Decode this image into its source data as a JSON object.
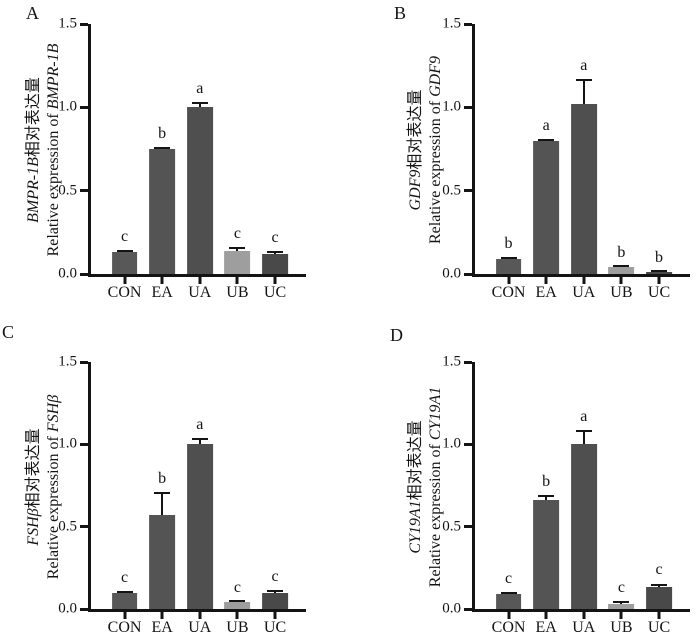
{
  "figure": {
    "background": "#ffffff",
    "axis_color": "#141414",
    "text_color": "#141414",
    "bar_color_dark": "#545454",
    "bar_color_light": "#9e9e9e"
  },
  "chart_data": [
    {
      "type": "bar",
      "panel_label": "A",
      "ylabel_cn_gene": "BMPR-1B",
      "ylabel_cn_suffix": "相对表达量",
      "ylabel_en_prefix": "Relative expression of ",
      "ylabel_en_gene": "BMPR-1B",
      "categories": [
        "CON",
        "EA",
        "UA",
        "UB",
        "UC"
      ],
      "values": [
        0.13,
        0.75,
        1.0,
        0.14,
        0.12
      ],
      "errors": [
        0.012,
        0.01,
        0.03,
        0.025,
        0.02
      ],
      "sig_letters": [
        "c",
        "b",
        "a",
        "c",
        "c"
      ],
      "bar_colors": [
        "#585858",
        "#545454",
        "#4f4f4f",
        "#9e9e9e",
        "#494949"
      ],
      "ylim": [
        0,
        1.5
      ],
      "ytick_labels": [
        "0.0",
        "0.5",
        "1.0",
        "1.5"
      ],
      "grid": false,
      "legend": null
    },
    {
      "type": "bar",
      "panel_label": "B",
      "ylabel_cn_gene": "GDF9",
      "ylabel_cn_suffix": "相对表达量",
      "ylabel_en_prefix": "Relative expression of ",
      "ylabel_en_gene": "GDF9",
      "categories": [
        "CON",
        "EA",
        "UA",
        "UB",
        "UC"
      ],
      "values": [
        0.09,
        0.8,
        1.02,
        0.04,
        0.012
      ],
      "errors": [
        0.012,
        0.012,
        0.15,
        0.008,
        0.004
      ],
      "sig_letters": [
        "b",
        "a",
        "a",
        "b",
        "b"
      ],
      "bar_colors": [
        "#585858",
        "#545454",
        "#4f4f4f",
        "#9e9e9e",
        "#494949"
      ],
      "ylim": [
        0,
        1.5
      ],
      "ytick_labels": [
        "0.0",
        "0.5",
        "1.0",
        "1.5"
      ],
      "grid": false,
      "legend": null
    },
    {
      "type": "bar",
      "panel_label": "C",
      "ylabel_cn_gene": "FSHβ",
      "ylabel_cn_suffix": "相对表达量",
      "ylabel_en_prefix": "Relative expression of ",
      "ylabel_en_gene": "FSHβ",
      "categories": [
        "CON",
        "EA",
        "UA",
        "UB",
        "UC"
      ],
      "values": [
        0.1,
        0.57,
        1.0,
        0.04,
        0.095
      ],
      "errors": [
        0.01,
        0.14,
        0.04,
        0.006,
        0.02
      ],
      "sig_letters": [
        "c",
        "b",
        "a",
        "c",
        "c"
      ],
      "bar_colors": [
        "#585858",
        "#545454",
        "#4f4f4f",
        "#9e9e9e",
        "#494949"
      ],
      "ylim": [
        0,
        1.5
      ],
      "ytick_labels": [
        "0.0",
        "0.5",
        "1.0",
        "1.5"
      ],
      "grid": false,
      "legend": null
    },
    {
      "type": "bar",
      "panel_label": "D",
      "ylabel_cn_gene": "CY19A1",
      "ylabel_cn_suffix": "相对表达量",
      "ylabel_en_prefix": "Relative expression of ",
      "ylabel_en_gene": "CY19A1",
      "categories": [
        "CON",
        "EA",
        "UA",
        "UB",
        "UC"
      ],
      "values": [
        0.09,
        0.66,
        1.0,
        0.03,
        0.135
      ],
      "errors": [
        0.012,
        0.03,
        0.09,
        0.02,
        0.02
      ],
      "sig_letters": [
        "c",
        "b",
        "a",
        "c",
        "c"
      ],
      "bar_colors": [
        "#585858",
        "#545454",
        "#4f4f4f",
        "#9e9e9e",
        "#494949"
      ],
      "ylim": [
        0,
        1.5
      ],
      "ytick_labels": [
        "0.0",
        "0.5",
        "1.0",
        "1.5"
      ],
      "grid": false,
      "legend": null
    }
  ]
}
